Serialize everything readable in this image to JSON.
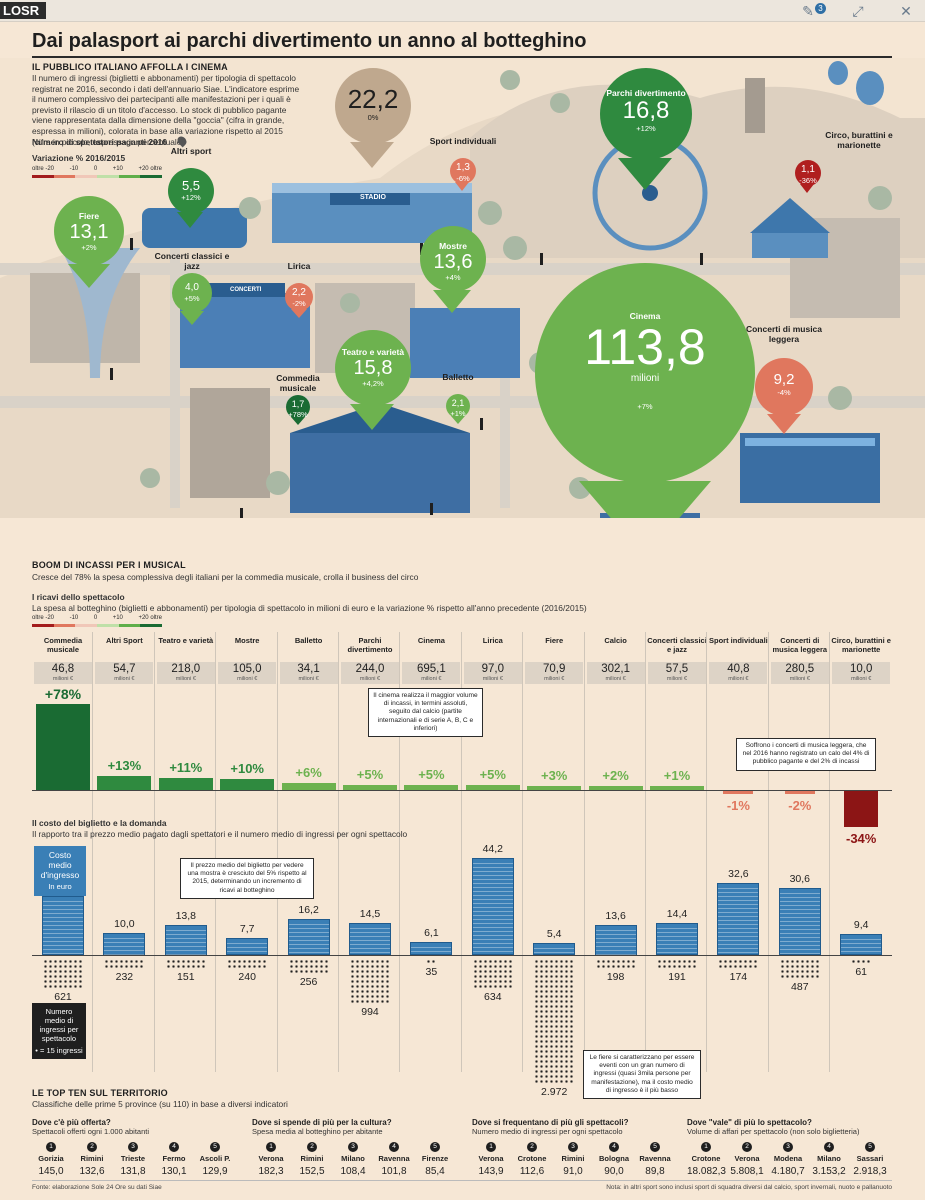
{
  "topbar": {
    "logo": "LOSR",
    "badge": "3"
  },
  "title": "Dai palasport ai parchi divertimento un anno al botteghino",
  "intro": {
    "heading": "IL PUBBLICO ITALIANO AFFOLLA I CINEMA",
    "text": "Il numero di ingressi (biglietti e abbonamenti) per tipologia di spettacolo registrat ne 2016, secondo i dati dell'annuario Siae. L'indicatore esprime il numero complessivo dei partecipanti alle manifestazioni per i quali è previsto il rilascio di un titolo d'accesso. Lo stock di pubblico pagante viene rappresentata dalla dimensione della \"goccia\" (cifra in grande, espressa in milioni), colorata in base alla variazione rispetto al 2015 (cifra in piccolo, espressa in percentuale)",
    "legend_label": "Numero di spettatori paganti 2016",
    "var_label": "Variazione % 2016/2015",
    "scale": [
      "oltre -20",
      "-10",
      "0",
      "+10",
      "+20 oltre"
    ],
    "scale_colors": [
      "#a31c1c",
      "#e0775e",
      "#f0c7b8",
      "#bfe0a8",
      "#5fae4a",
      "#1a6b33"
    ]
  },
  "pins": [
    {
      "name": "Calcio",
      "value": "22,2",
      "pct": "0%",
      "color": "#bfa88e"
    },
    {
      "name": "Sport individuali",
      "value": "1,3",
      "pct": "-6%",
      "color": "#e0775e"
    },
    {
      "name": "Parchi divertimento",
      "value": "16,8",
      "pct": "+12%",
      "color": "#2f8a3f"
    },
    {
      "name": "Circo, burattini e marionette",
      "value": "1,1",
      "pct": "-36%",
      "color": "#b01f1f"
    },
    {
      "name": "Altri sport",
      "value": "5,5",
      "pct": "+12%",
      "color": "#2f8a3f"
    },
    {
      "name": "Fiere",
      "value": "13,1",
      "pct": "+2%",
      "color": "#6db24f"
    },
    {
      "name": "Concerti classici e jazz",
      "value": "4,0",
      "pct": "+5%",
      "color": "#6db24f"
    },
    {
      "name": "Lirica",
      "value": "2,2",
      "pct": "-2%",
      "color": "#e0775e"
    },
    {
      "name": "Mostre",
      "value": "13,6",
      "pct": "+4%",
      "color": "#6db24f"
    },
    {
      "name": "Cinema",
      "value": "113,8",
      "unit": "milioni",
      "pct": "+7%",
      "color": "#6db24f"
    },
    {
      "name": "Concerti di musica leggera",
      "value": "9,2",
      "pct": "-4%",
      "color": "#e0775e"
    },
    {
      "name": "Teatro e varietà",
      "value": "15,8",
      "pct": "+4,2%",
      "color": "#6db24f"
    },
    {
      "name": "Commedia musicale",
      "value": "1,7",
      "pct": "+78%",
      "color": "#1a6b33"
    },
    {
      "name": "Balletto",
      "value": "2,1",
      "pct": "+1%",
      "color": "#6db24f"
    }
  ],
  "labels_illus": {
    "stadio": "STADIO",
    "concerti": "CONCERTI",
    "cinema": "CINEMA"
  },
  "boom": {
    "heading": "BOOM DI INCASSI PER I MUSICAL",
    "sub": "Cresce del 78% la spesa complessiva degli italiani per la commedia musicale, crolla il business del circo",
    "ricavi_h": "I ricavi dello spettacolo",
    "ricavi_s": "La spesa al botteghino (biglietti e abbonamenti) per tipologia di spettacolo in milioni di euro e la variazione % rispetto all'anno precedente (2016/2015)",
    "scale": [
      "oltre -20",
      "-10",
      "0",
      "+10",
      "+20 oltre"
    ],
    "unit": "milioni €"
  },
  "chart_data": [
    {
      "type": "bar",
      "title": "I ricavi dello spettacolo",
      "categories": [
        "Commedia musicale",
        "Altri Sport",
        "Teatro e varietà",
        "Mostre",
        "Balletto",
        "Parchi divertimento",
        "Cinema",
        "Lirica",
        "Fiere",
        "Calcio",
        "Concerti classici e jazz",
        "Sport individuali",
        "Concerti di musica leggera",
        "Circo, burattini e marionette"
      ],
      "spesa": [
        "46,8",
        "54,7",
        "218,0",
        "105,0",
        "34,1",
        "244,0",
        "695,1",
        "97,0",
        "70,9",
        "302,1",
        "57,5",
        "40,8",
        "280,5",
        "10,0"
      ],
      "variazione_pct": [
        78,
        13,
        11,
        10,
        6,
        5,
        5,
        5,
        3,
        2,
        1,
        -1,
        -2,
        -34
      ],
      "variazione_label": [
        "+78%",
        "+13%",
        "+11%",
        "+10%",
        "+6%",
        "+5%",
        "+5%",
        "+5%",
        "+3%",
        "+2%",
        "+1%",
        "-1%",
        "-2%",
        "-34%"
      ],
      "bar_colors": [
        "#1a6b33",
        "#2f8a3f",
        "#2f8a3f",
        "#2f8a3f",
        "#6db24f",
        "#6db24f",
        "#6db24f",
        "#6db24f",
        "#6db24f",
        "#6db24f",
        "#6db24f",
        "#e0775e",
        "#e0775e",
        "#8c1515"
      ]
    },
    {
      "type": "bar",
      "title": "Il costo del biglietto e la domanda",
      "categories": [
        "Commedia musicale",
        "Altri Sport",
        "Teatro e varietà",
        "Mostre",
        "Balletto",
        "Parchi divertimento",
        "Cinema",
        "Lirica",
        "Fiere",
        "Calcio",
        "Concerti classici e jazz",
        "Sport individuali",
        "Concerti di musica leggera",
        "Circo, burattini e marionette"
      ],
      "costo_medio": [
        26.8,
        10.0,
        13.8,
        7.7,
        16.2,
        14.5,
        6.1,
        44.2,
        5.4,
        13.6,
        14.4,
        32.6,
        30.6,
        9.4
      ],
      "costo_label": [
        "26,8",
        "10,0",
        "13,8",
        "7,7",
        "16,2",
        "14,5",
        "6,1",
        "44,2",
        "5,4",
        "13,6",
        "14,4",
        "32,6",
        "30,6",
        "9,4"
      ],
      "ingressi_medi": [
        621,
        232,
        151,
        240,
        256,
        994,
        35,
        634,
        2972,
        198,
        191,
        174,
        487,
        61
      ],
      "ingressi_label": [
        "621",
        "232",
        "151",
        "240",
        "256",
        "994",
        "35",
        "634",
        "2.972",
        "198",
        "191",
        "174",
        "487",
        "61"
      ]
    }
  ],
  "costo": {
    "heading": "Il costo del biglietto e la domanda",
    "sub": "Il rapporto tra il prezzo medio pagato dagli spettatori e il numero medio di ingressi per ogni spettacolo",
    "legend_title": "Costo medio d'ingresso",
    "legend_unit": "In euro",
    "att_legend": "Numero medio di ingressi per spettacolo",
    "att_unit": "• = 15 ingressi"
  },
  "notes": {
    "cinema": "Il cinema realizza il maggior volume di incassi, in termini assoluti, seguito dal calcio (partite internazionali e di serie A, B, C e inferiori)",
    "concerti": "Soffrono i concerti di musica leggera, che nel 2016 hanno registrato un calo del 4% di pubblico pagante e del 2% di incassi",
    "mostre": "Il prezzo medio del biglietto per vedere una mostra è cresciuto del 5% rispetto al 2015, determinando un incremento di ricavi al botteghino",
    "fiere": "Le fiere si caratterizzano per essere eventi con un gran numero di ingressi (quasi 3mila persone per manifestazione), ma il costo medio di ingresso è il più basso"
  },
  "topten": {
    "heading": "LE TOP TEN SUL TERRITORIO",
    "sub": "Classifiche delle prime 5 province (su 110) in base a diversi indicatori",
    "groups": [
      {
        "q": "Dove c'è più offerta?",
        "s": "Spettacoli offerti ogni 1.000 abitanti",
        "items": [
          {
            "n": "1",
            "c": "Gorizia",
            "v": "145,0"
          },
          {
            "n": "2",
            "c": "Rimini",
            "v": "132,6"
          },
          {
            "n": "3",
            "c": "Trieste",
            "v": "131,8"
          },
          {
            "n": "4",
            "c": "Fermo",
            "v": "130,1"
          },
          {
            "n": "5",
            "c": "Ascoli P.",
            "v": "129,9"
          }
        ]
      },
      {
        "q": "Dove si spende di più per la cultura?",
        "s": "Spesa media al botteghino per abitante",
        "items": [
          {
            "n": "1",
            "c": "Verona",
            "v": "182,3"
          },
          {
            "n": "2",
            "c": "Rimini",
            "v": "152,5"
          },
          {
            "n": "3",
            "c": "Milano",
            "v": "108,4"
          },
          {
            "n": "4",
            "c": "Ravenna",
            "v": "101,8"
          },
          {
            "n": "5",
            "c": "Firenze",
            "v": "85,4"
          }
        ]
      },
      {
        "q": "Dove si frequentano di più gli spettacoli?",
        "s": "Numero medio di ingressi per ogni spettacolo",
        "items": [
          {
            "n": "1",
            "c": "Verona",
            "v": "143,9"
          },
          {
            "n": "2",
            "c": "Crotone",
            "v": "112,6"
          },
          {
            "n": "3",
            "c": "Rimini",
            "v": "91,0"
          },
          {
            "n": "4",
            "c": "Bologna",
            "v": "90,0"
          },
          {
            "n": "5",
            "c": "Ravenna",
            "v": "89,8"
          }
        ]
      },
      {
        "q": "Dove \"vale\" di più lo spettacolo?",
        "s": "Volume di affari per spettacolo (non solo biglietteria)",
        "items": [
          {
            "n": "1",
            "c": "Crotone",
            "v": "18.082,3"
          },
          {
            "n": "2",
            "c": "Verona",
            "v": "5.808,1"
          },
          {
            "n": "3",
            "c": "Modena",
            "v": "4.180,7"
          },
          {
            "n": "4",
            "c": "Milano",
            "v": "3.153,2"
          },
          {
            "n": "5",
            "c": "Sassari",
            "v": "2.918,3"
          }
        ]
      }
    ]
  },
  "footer": {
    "source": "Fonte: elaborazione Sole 24 Ore su dati Siae",
    "note": "Nota: in altri sport sono inclusi sport di squadra diversi dal calcio, sport invernali, nuoto e pallanuoto"
  }
}
